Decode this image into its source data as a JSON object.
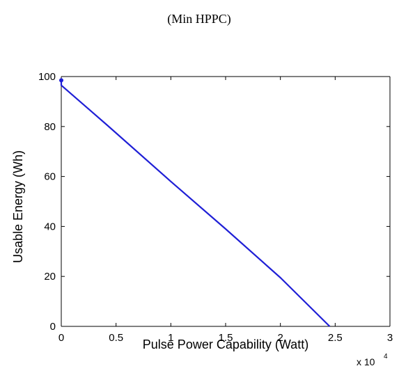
{
  "chart_data": {
    "type": "line",
    "title": "(Min HPPC)",
    "xlabel": "Pulse Power Capability (Watt)",
    "ylabel": "Usable Energy (Wh)",
    "x_multiplier_base": "x 10",
    "x_multiplier_exp": "4",
    "xlim": [
      0,
      3
    ],
    "ylim": [
      0,
      100
    ],
    "x_ticks": [
      "0",
      "0.5",
      "1",
      "1.5",
      "2",
      "2.5",
      "3"
    ],
    "x_tick_values": [
      0,
      0.5,
      1,
      1.5,
      2,
      2.5,
      3
    ],
    "y_ticks": [
      "0",
      "20",
      "40",
      "60",
      "80",
      "100"
    ],
    "y_tick_values": [
      0,
      20,
      40,
      60,
      80,
      100
    ],
    "grid": false,
    "series": [
      {
        "color": "#1f1fd6",
        "x": [
          0,
          0,
          0.42,
          1.0,
          1.5,
          2.0,
          2.45
        ],
        "y": [
          98.5,
          96.5,
          80.5,
          58.0,
          39.0,
          19.5,
          0
        ]
      }
    ]
  }
}
